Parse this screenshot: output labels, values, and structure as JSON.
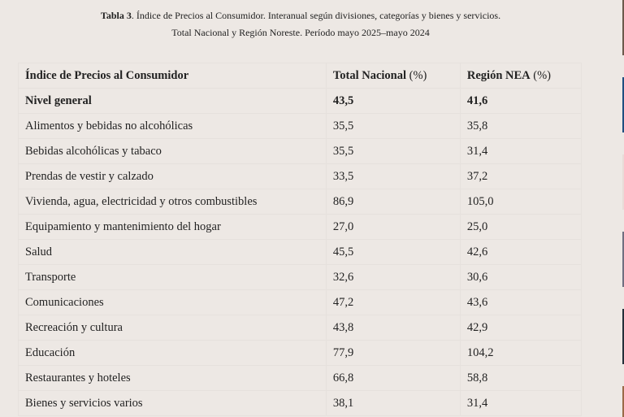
{
  "caption": {
    "label": "Tabla 3",
    "line1_rest": ". Índice de Precios al Consumidor. Interanual según divisiones, categorías y bienes y servicios.",
    "line2": "Total Nacional y Región Noreste. Período mayo 2025–mayo 2024"
  },
  "table": {
    "headers": {
      "col1": "Índice de Precios al Consumidor",
      "col2_name": "Total Nacional",
      "col2_unit": " (%)",
      "col3_name": "Región NEA",
      "col3_unit": " (%)"
    },
    "rows": [
      {
        "label": "Nivel general",
        "total_nacional": "43,5",
        "region_nea": "41,6",
        "bold": true
      },
      {
        "label": "Alimentos y bebidas no alcohólicas",
        "total_nacional": "35,5",
        "region_nea": "35,8"
      },
      {
        "label": "Bebidas alcohólicas y tabaco",
        "total_nacional": "35,5",
        "region_nea": "31,4"
      },
      {
        "label": "Prendas de vestir y calzado",
        "total_nacional": "33,5",
        "region_nea": "37,2"
      },
      {
        "label": "Vivienda, agua, electricidad y otros combustibles",
        "total_nacional": "86,9",
        "region_nea": "105,0"
      },
      {
        "label": "Equipamiento y mantenimiento del hogar",
        "total_nacional": "27,0",
        "region_nea": "25,0"
      },
      {
        "label": "Salud",
        "total_nacional": "45,5",
        "region_nea": "42,6"
      },
      {
        "label": "Transporte",
        "total_nacional": "32,6",
        "region_nea": "30,6"
      },
      {
        "label": "Comunicaciones",
        "total_nacional": "47,2",
        "region_nea": "43,6"
      },
      {
        "label": "Recreación y cultura",
        "total_nacional": "43,8",
        "region_nea": "42,9"
      },
      {
        "label": "Educación",
        "total_nacional": "77,9",
        "region_nea": "104,2"
      },
      {
        "label": "Restaurantes y hoteles",
        "total_nacional": "66,8",
        "region_nea": "58,8"
      },
      {
        "label": "Bienes y servicios varios",
        "total_nacional": "38,1",
        "region_nea": "31,4"
      }
    ]
  },
  "sidebar_thumbnails": {
    "colors": [
      "#6b5a4c",
      "#1f4f80",
      "#e8dcd8",
      "#6f6f80",
      "#24303a",
      "#9a6a48"
    ]
  }
}
